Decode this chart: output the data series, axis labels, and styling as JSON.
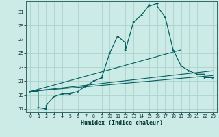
{
  "xlabel": "Humidex (Indice chaleur)",
  "xlim": [
    -0.5,
    23.5
  ],
  "ylim": [
    16.5,
    32.5
  ],
  "xticks": [
    0,
    1,
    2,
    3,
    4,
    5,
    6,
    7,
    8,
    9,
    10,
    11,
    12,
    13,
    14,
    15,
    16,
    17,
    18,
    19,
    20,
    21,
    22,
    23
  ],
  "yticks": [
    17,
    19,
    21,
    23,
    25,
    27,
    29,
    31
  ],
  "bg_color": "#cceae6",
  "line_color": "#006060",
  "grid_color": "#aad4ce",
  "main_x": [
    0,
    1,
    1,
    2,
    2,
    3,
    4,
    5,
    6,
    7,
    8,
    9,
    10,
    11,
    12,
    12,
    13,
    14,
    15,
    15,
    16,
    16,
    17,
    18,
    19,
    20,
    21,
    22,
    22,
    23
  ],
  "main_y": [
    19.5,
    19.5,
    17.2,
    17.0,
    17.5,
    18.8,
    19.2,
    19.2,
    19.5,
    20.3,
    21.0,
    21.5,
    25.0,
    27.5,
    26.5,
    25.5,
    29.5,
    30.5,
    32.0,
    31.8,
    32.2,
    31.8,
    30.2,
    25.5,
    23.2,
    22.5,
    22.0,
    22.0,
    21.5,
    21.5
  ],
  "trendline1_x": [
    0,
    23
  ],
  "trendline1_y": [
    19.5,
    21.8
  ],
  "trendline2_x": [
    0,
    19
  ],
  "trendline2_y": [
    19.5,
    25.5
  ],
  "trendline3_x": [
    0,
    23
  ],
  "trendline3_y": [
    19.5,
    22.5
  ],
  "marker_x": [
    0,
    1,
    2,
    3,
    4,
    5,
    6,
    7,
    8,
    9,
    10,
    11,
    12,
    13,
    14,
    15,
    16,
    17,
    18,
    19,
    20,
    21,
    22,
    23
  ],
  "marker_y": [
    19.5,
    17.2,
    17.0,
    18.8,
    19.2,
    19.2,
    19.5,
    20.3,
    21.0,
    21.5,
    25.0,
    27.5,
    25.5,
    29.5,
    30.5,
    32.0,
    32.2,
    30.2,
    25.5,
    23.2,
    22.5,
    22.0,
    21.5,
    21.5
  ]
}
